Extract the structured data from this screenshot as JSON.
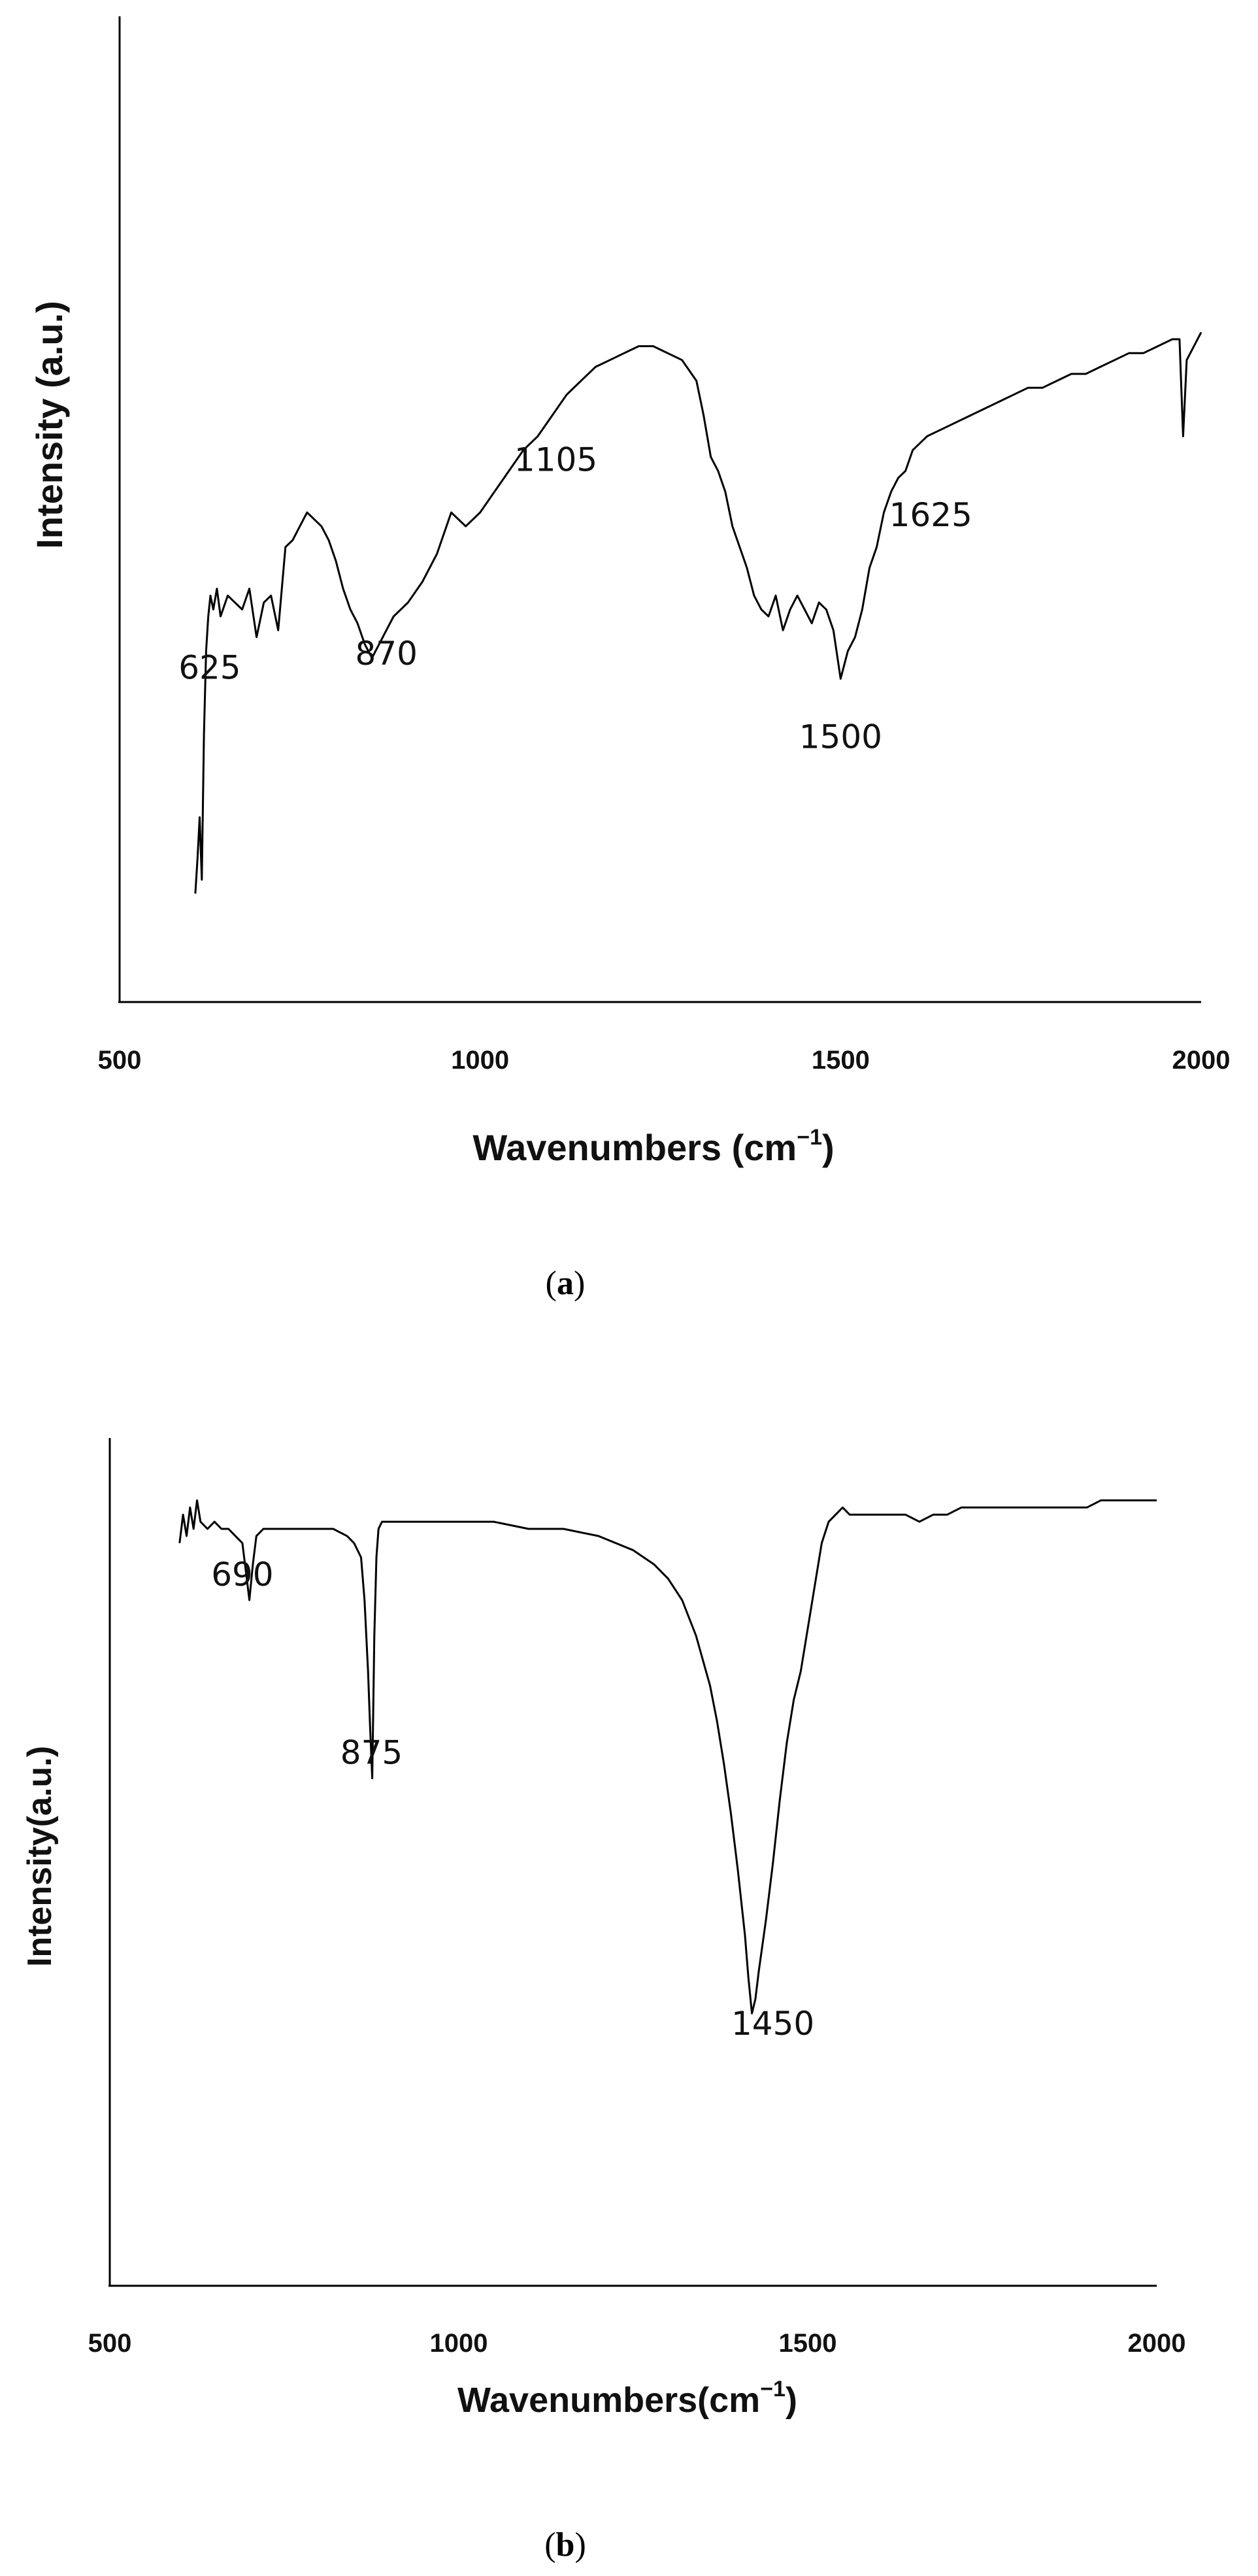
{
  "chart_data": [
    {
      "type": "line",
      "panel_label": "a",
      "xlabel": "Wavenumbers",
      "xlabel_unit": "(cm",
      "xlabel_exp": "−1",
      "xlabel_close": ")",
      "ylabel": "Intensity (a.u.)",
      "xlim": [
        500,
        2000
      ],
      "ylim": [
        0,
        100
      ],
      "xticks": [
        500,
        1000,
        1500,
        2000
      ],
      "y_tick_labels": false,
      "grid": false,
      "legend": "none",
      "annotations": [
        {
          "text": "625",
          "x": 625,
          "y": 36
        },
        {
          "text": "870",
          "x": 870,
          "y": 38
        },
        {
          "text": "1105",
          "x": 1105,
          "y": 66
        },
        {
          "text": "1500",
          "x": 1500,
          "y": 26
        },
        {
          "text": "1625",
          "x": 1625,
          "y": 58
        }
      ],
      "series": [
        {
          "x": [
            605,
            608,
            611,
            614,
            617,
            620,
            623,
            626,
            630,
            635,
            640,
            650,
            660,
            670,
            680,
            690,
            700,
            710,
            720,
            730,
            740,
            750,
            760,
            770,
            780,
            790,
            800,
            810,
            820,
            830,
            840,
            850,
            860,
            870,
            880,
            890,
            900,
            920,
            940,
            960,
            980,
            1000,
            1020,
            1040,
            1060,
            1080,
            1100,
            1120,
            1140,
            1160,
            1180,
            1200,
            1220,
            1240,
            1260,
            1280,
            1300,
            1310,
            1320,
            1330,
            1340,
            1350,
            1360,
            1370,
            1380,
            1390,
            1400,
            1410,
            1420,
            1430,
            1440,
            1450,
            1460,
            1470,
            1480,
            1490,
            1500,
            1510,
            1520,
            1530,
            1540,
            1550,
            1560,
            1570,
            1580,
            1590,
            1600,
            1620,
            1640,
            1660,
            1680,
            1700,
            1720,
            1740,
            1760,
            1780,
            1800,
            1820,
            1840,
            1860,
            1880,
            1900,
            1920,
            1940,
            1960,
            1970,
            1975,
            1980,
            1990,
            2000
          ],
          "y": [
            5,
            10,
            16,
            7,
            28,
            40,
            45,
            48,
            46,
            49,
            45,
            48,
            47,
            46,
            49,
            42,
            47,
            48,
            43,
            55,
            56,
            58,
            60,
            59,
            58,
            56,
            53,
            49,
            46,
            44,
            41,
            39,
            41,
            43,
            45,
            46,
            47,
            50,
            54,
            60,
            58,
            60,
            63,
            66,
            69,
            71,
            74,
            77,
            79,
            81,
            82,
            83,
            84,
            84,
            83,
            82,
            79,
            74,
            68,
            66,
            63,
            58,
            55,
            52,
            48,
            46,
            45,
            48,
            43,
            46,
            48,
            46,
            44,
            47,
            46,
            43,
            36,
            40,
            42,
            46,
            52,
            55,
            60,
            63,
            65,
            66,
            69,
            71,
            72,
            73,
            74,
            75,
            76,
            77,
            78,
            78,
            79,
            80,
            80,
            81,
            82,
            83,
            83,
            84,
            85,
            85,
            71,
            82,
            84,
            86
          ]
        }
      ]
    },
    {
      "type": "line",
      "panel_label": "b",
      "xlabel": "Wavenumbers",
      "xlabel_unit": "(cm",
      "xlabel_exp": "−1",
      "xlabel_close": ")",
      "ylabel": "Intensity(a.u.)",
      "xlim": [
        500,
        2000
      ],
      "ylim": [
        0,
        100
      ],
      "xticks": [
        500,
        1000,
        1500,
        2000
      ],
      "y_tick_labels": false,
      "grid": false,
      "legend": "none",
      "annotations": [
        {
          "text": "690",
          "x": 690,
          "y": 82
        },
        {
          "text": "875",
          "x": 875,
          "y": 57
        },
        {
          "text": "1450",
          "x": 1450,
          "y": 19
        }
      ],
      "series": [
        {
          "x": [
            600,
            605,
            610,
            615,
            620,
            625,
            630,
            640,
            650,
            660,
            670,
            680,
            690,
            695,
            700,
            705,
            710,
            720,
            740,
            760,
            780,
            800,
            820,
            840,
            850,
            860,
            865,
            870,
            873,
            876,
            879,
            882,
            885,
            890,
            900,
            920,
            950,
            1000,
            1050,
            1100,
            1150,
            1200,
            1250,
            1280,
            1300,
            1320,
            1340,
            1360,
            1370,
            1380,
            1390,
            1400,
            1410,
            1415,
            1420,
            1425,
            1430,
            1440,
            1450,
            1460,
            1470,
            1480,
            1490,
            1500,
            1510,
            1520,
            1530,
            1540,
            1550,
            1560,
            1570,
            1580,
            1600,
            1620,
            1640,
            1660,
            1680,
            1700,
            1720,
            1740,
            1760,
            1780,
            1800,
            1820,
            1840,
            1860,
            1880,
            1900,
            1920,
            1940,
            1960,
            1980,
            2000
          ],
          "y": [
            88,
            92,
            89,
            93,
            90,
            94,
            91,
            90,
            91,
            90,
            90,
            89,
            88,
            84,
            80,
            85,
            89,
            90,
            90,
            90,
            90,
            90,
            90,
            89,
            88,
            86,
            80,
            70,
            62,
            55,
            75,
            86,
            90,
            91,
            91,
            91,
            91,
            91,
            91,
            90,
            90,
            89,
            87,
            85,
            83,
            80,
            75,
            68,
            63,
            57,
            50,
            42,
            33,
            27,
            22,
            24,
            28,
            35,
            43,
            52,
            60,
            66,
            70,
            76,
            82,
            88,
            91,
            92,
            93,
            92,
            92,
            92,
            92,
            92,
            92,
            91,
            92,
            92,
            93,
            93,
            93,
            93,
            93,
            93,
            93,
            93,
            93,
            93,
            94,
            94,
            94,
            94,
            94
          ]
        }
      ]
    }
  ],
  "captions": [
    {
      "open": "(",
      "letter": "a",
      "close": ")"
    },
    {
      "open": "(",
      "letter": "b",
      "close": ")"
    }
  ]
}
